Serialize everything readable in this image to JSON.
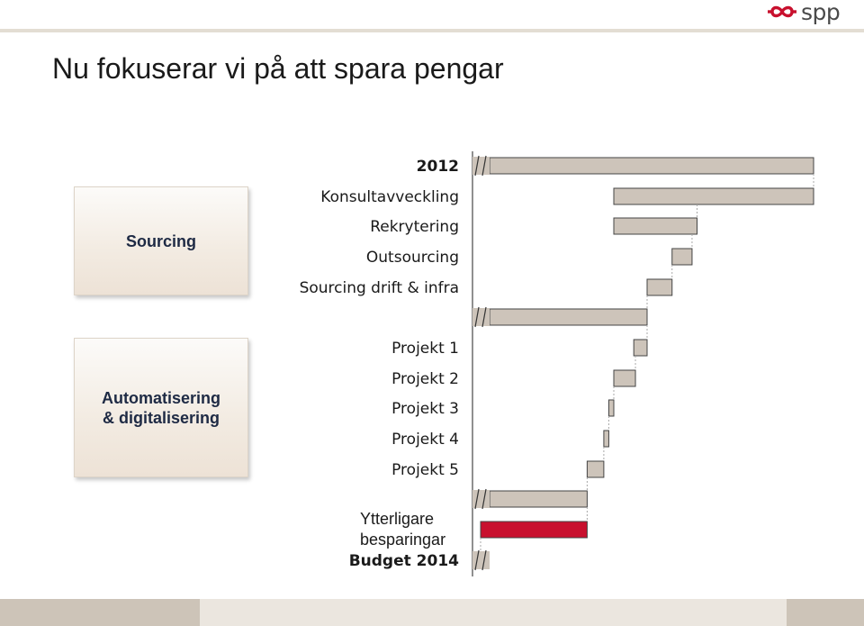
{
  "brand": {
    "name": "spp",
    "logo_color": "#c8102e",
    "icon": "infinity-chain-logo-icon"
  },
  "title": "Nu fokuserar vi på att spara pengar",
  "groups": [
    {
      "label": "Sourcing"
    },
    {
      "label": "Automatisering\n& digitalisering"
    }
  ],
  "chart_data": {
    "type": "bar",
    "subtype": "waterfall",
    "orientation": "horizontal",
    "axis_break": true,
    "categories": [
      "2012",
      "Konsultavveckling",
      "Rekrytering",
      "Outsourcing",
      "Sourcing drift & infra",
      "",
      "Projekt 1",
      "Projekt 2",
      "Projekt 3",
      "Projekt 4",
      "Projekt 5",
      "",
      "Ytterligare besparingar",
      "Budget 2014"
    ],
    "bold_categories": [
      "2012",
      "Budget 2014"
    ],
    "bars": [
      {
        "kind": "total",
        "start": 0,
        "end": 100
      },
      {
        "kind": "reduction",
        "start": 40,
        "end": 100
      },
      {
        "kind": "reduction",
        "start": 40,
        "end": 65
      },
      {
        "kind": "reduction",
        "start": 57.5,
        "end": 63.5
      },
      {
        "kind": "reduction",
        "start": 50,
        "end": 57.5
      },
      {
        "kind": "total",
        "start": 0,
        "end": 50
      },
      {
        "kind": "reduction",
        "start": 46,
        "end": 50
      },
      {
        "kind": "reduction",
        "start": 40,
        "end": 46.5
      },
      {
        "kind": "reduction",
        "start": 38.5,
        "end": 40
      },
      {
        "kind": "reduction",
        "start": 37,
        "end": 38.5
      },
      {
        "kind": "reduction",
        "start": 32,
        "end": 37
      },
      {
        "kind": "total",
        "start": 0,
        "end": 32
      },
      {
        "kind": "highlight",
        "start": 0,
        "end": 32
      },
      {
        "kind": "total",
        "start": 0,
        "end": 0
      }
    ],
    "colors": {
      "bar": "#cdc4ba",
      "highlight": "#c8102e",
      "outline": "#444444",
      "connector": "#a8a8a8"
    },
    "xlim": [
      0,
      100
    ],
    "grid": false,
    "legend": "none",
    "title": "",
    "xlabel": "",
    "ylabel": ""
  }
}
